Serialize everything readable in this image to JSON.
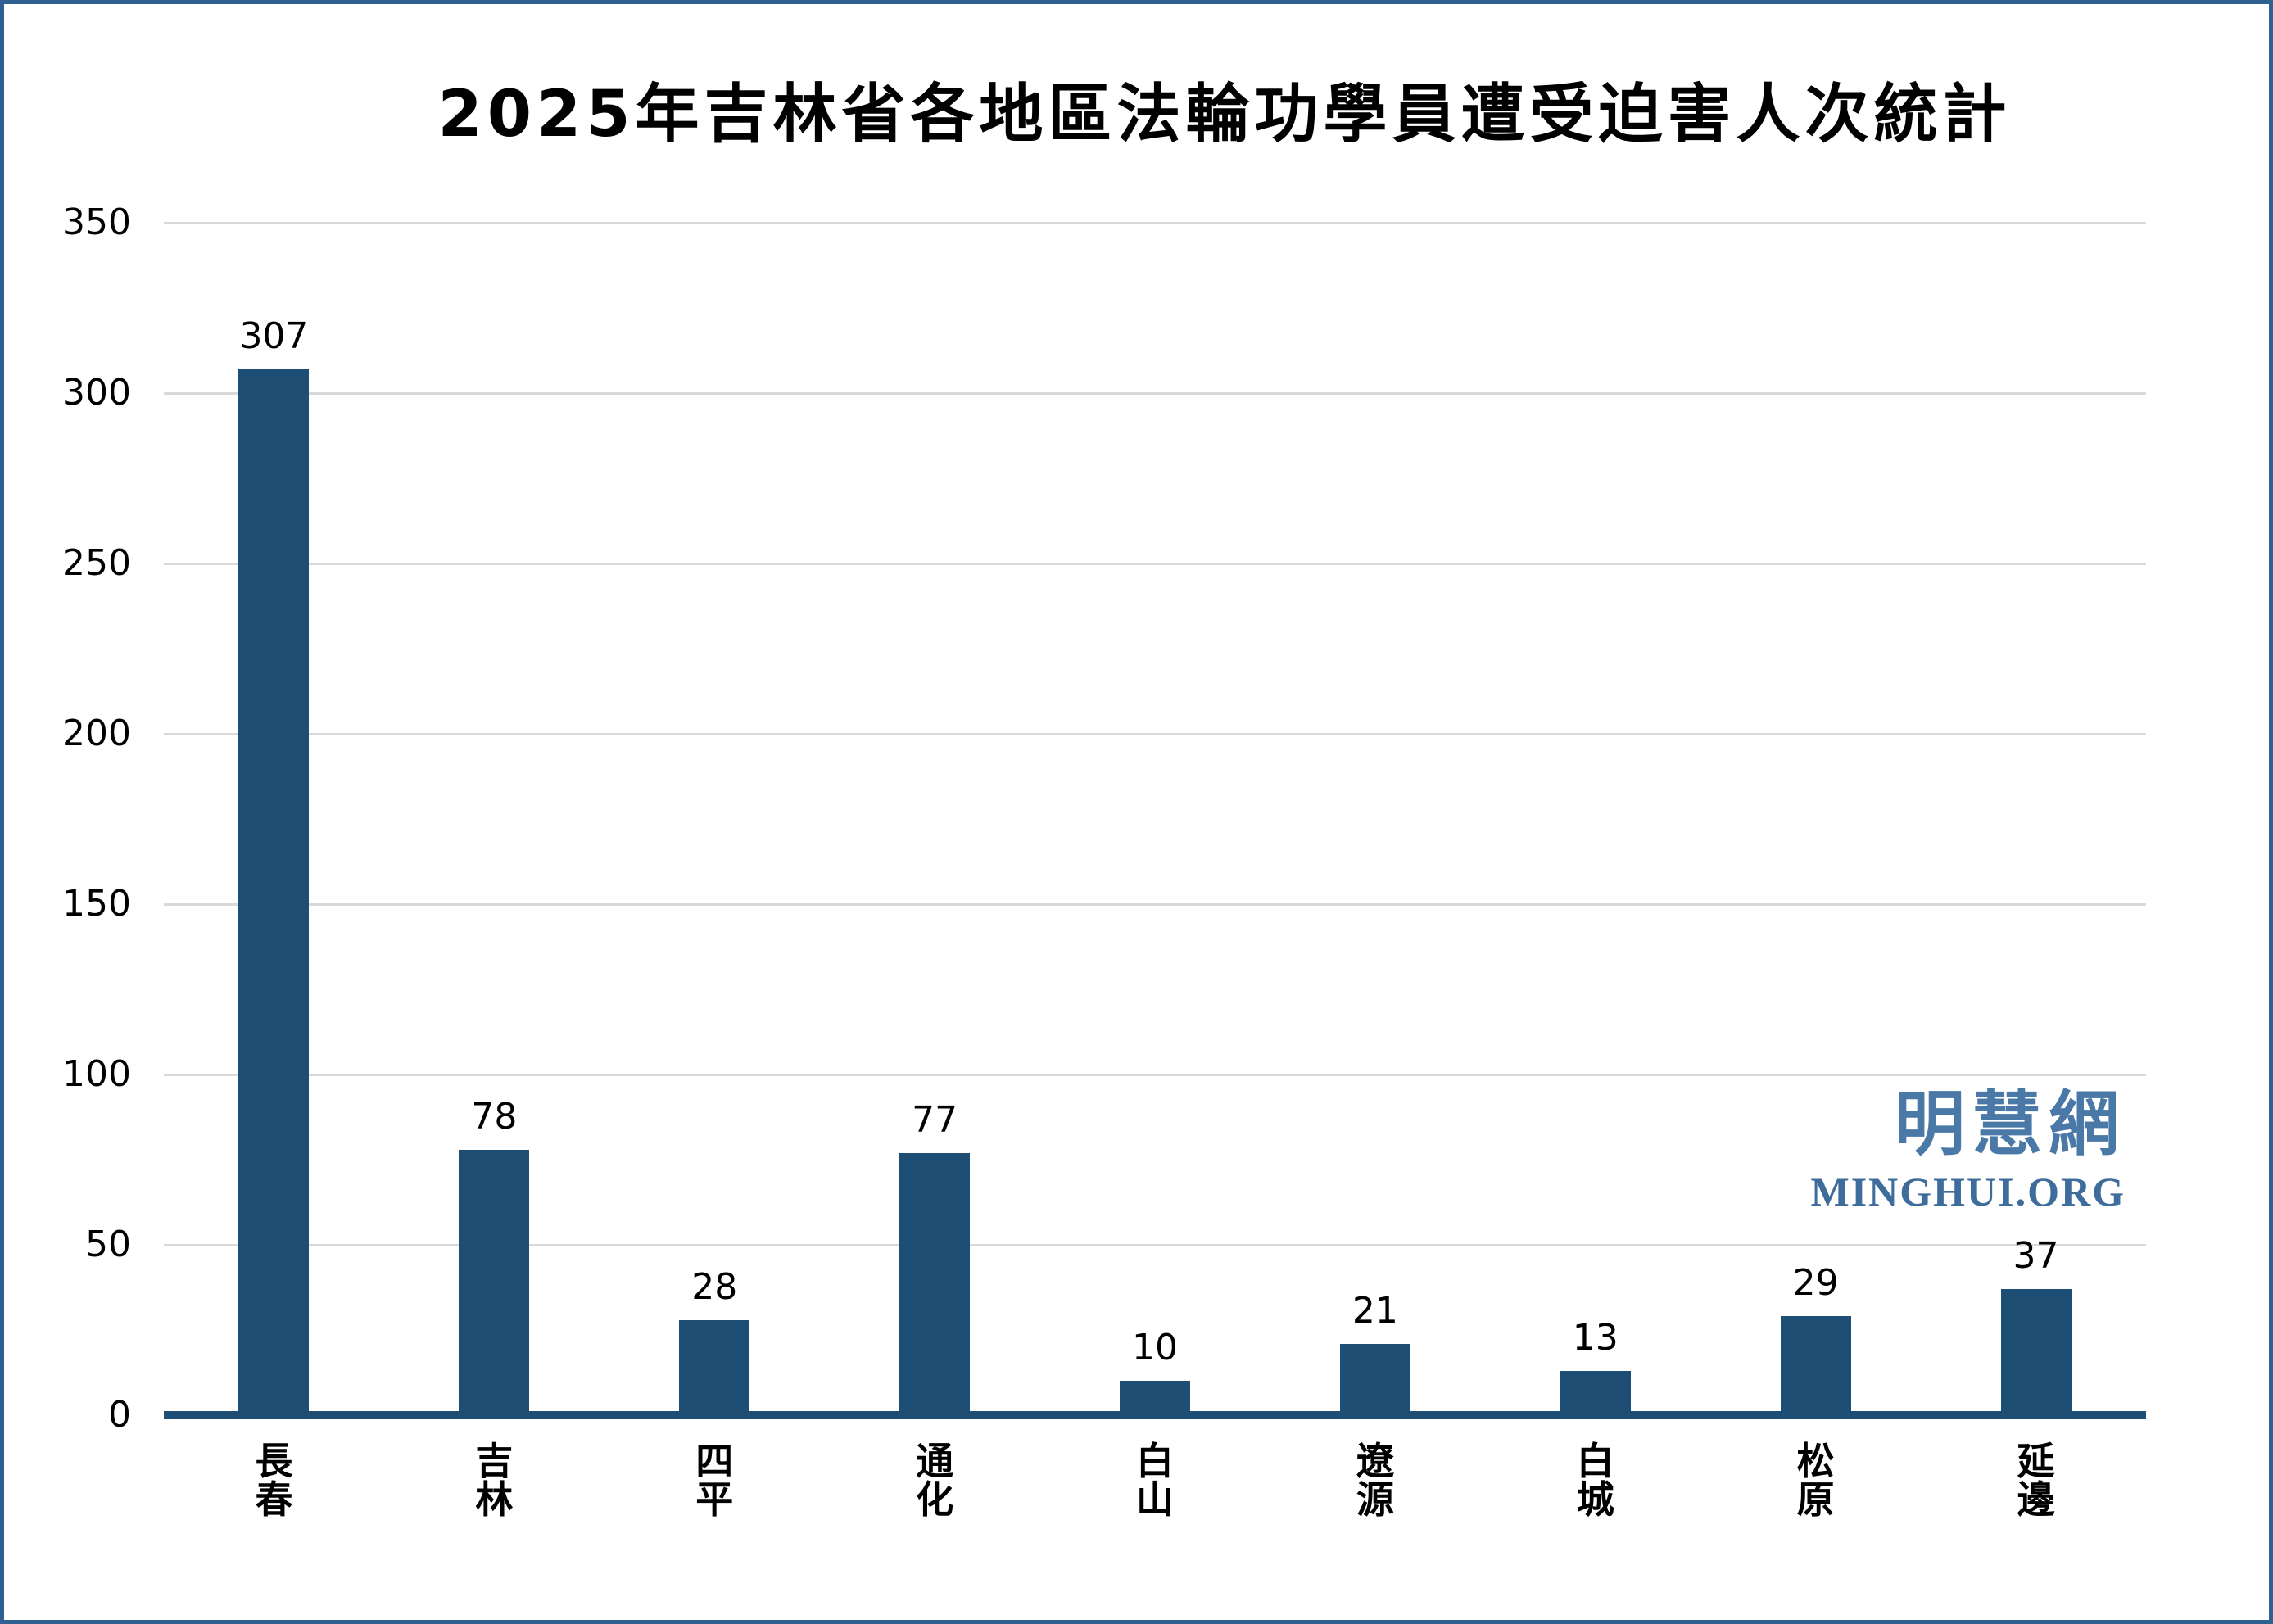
{
  "page": {
    "title": "2025年吉林省各地區法輪功學員遭受迫害人次統計"
  },
  "watermark": {
    "cjk": "明慧網",
    "latin": "MINGHUI.ORG"
  },
  "chart_data": {
    "type": "bar",
    "title": "2025年吉林省各地區法輪功學員遭受迫害人次統計",
    "categories": [
      "長春",
      "吉林",
      "四平",
      "通化",
      "白山",
      "遼源",
      "白城",
      "松原",
      "延邊"
    ],
    "values": [
      307,
      78,
      28,
      77,
      10,
      21,
      13,
      29,
      37
    ],
    "data_labels_shown": true,
    "xlabel": "",
    "ylabel": "",
    "ylim": [
      0,
      350
    ],
    "yticks": [
      0,
      50,
      100,
      150,
      200,
      250,
      300,
      350
    ],
    "grid": "horizontal",
    "legend_position": "none",
    "colors": {
      "bar": "#1F4E74",
      "axis_line": "#1F4E74",
      "gridline": "#D9D9D9",
      "frame_border": "#2E6191",
      "watermark_cjk": "#4A79A8",
      "watermark_latin": "#3E6D9C",
      "text": "#000000",
      "background": "#FFFFFF"
    }
  }
}
